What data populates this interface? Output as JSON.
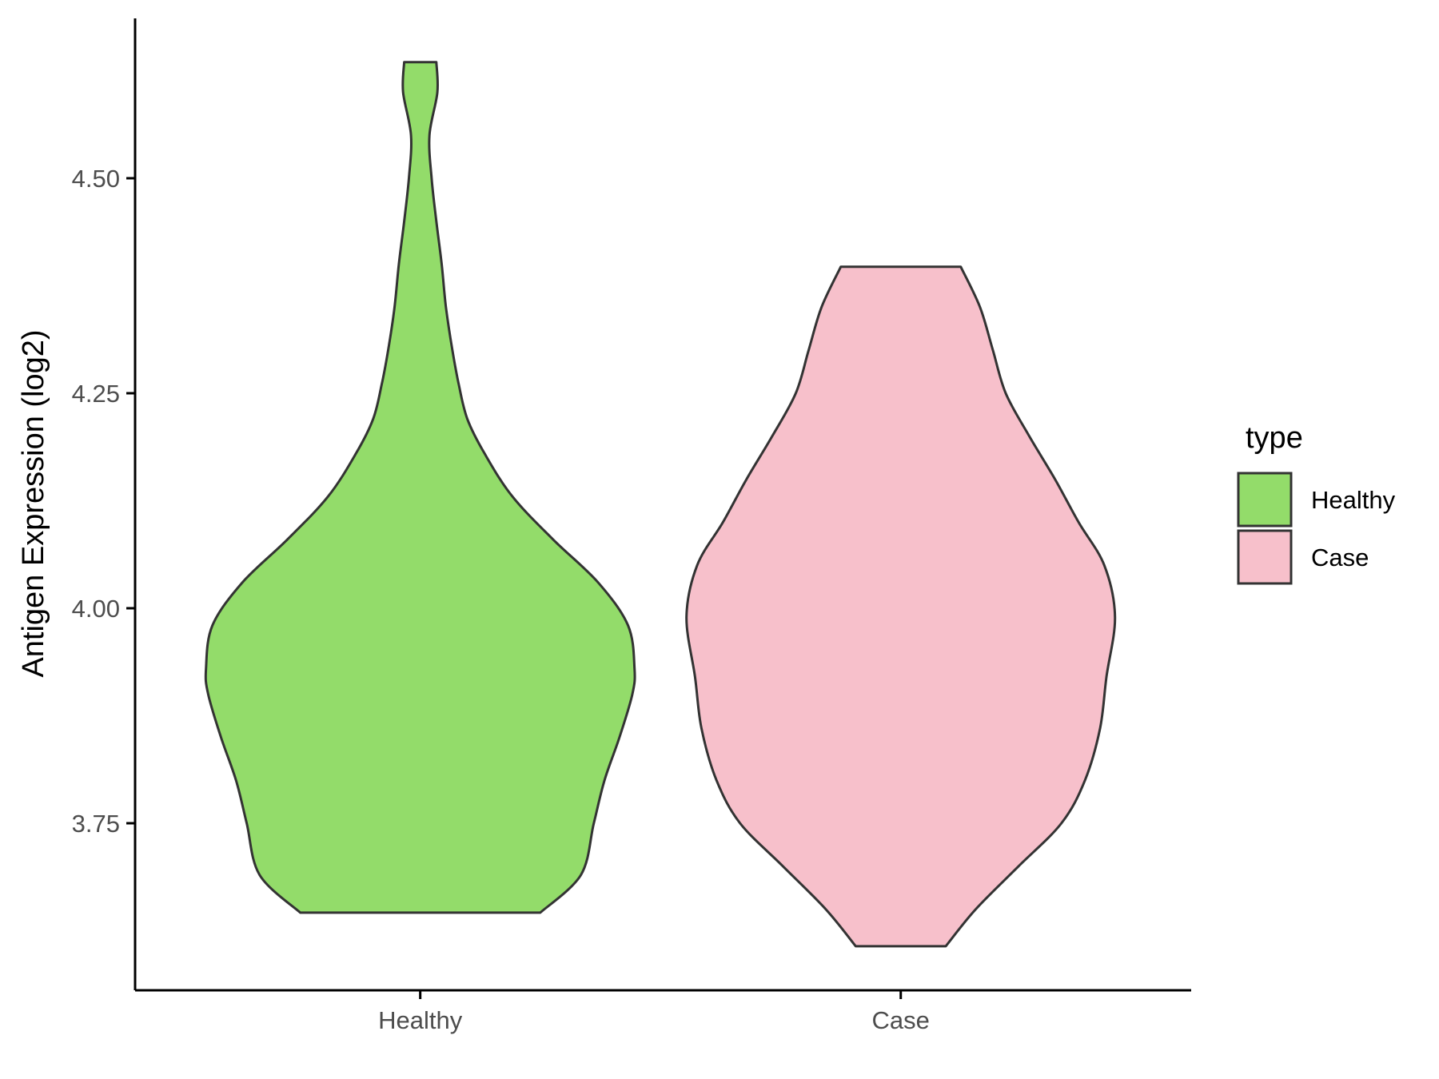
{
  "chart_data": {
    "type": "violin",
    "title": "",
    "xlabel": "",
    "ylabel": "Antigen Expression (log2)",
    "ylim": [
      3.55,
      4.68
    ],
    "yticks": [
      {
        "value": 3.75,
        "label": "3.75"
      },
      {
        "value": 4.0,
        "label": "4.00"
      },
      {
        "value": 4.25,
        "label": "4.25"
      },
      {
        "value": 4.5,
        "label": "4.50"
      }
    ],
    "categories": [
      "Healthy",
      "Case"
    ],
    "grid": false,
    "legend": {
      "title": "type",
      "position": "right",
      "entries": [
        "Healthy",
        "Case"
      ]
    },
    "series": [
      {
        "name": "Healthy",
        "color": "#93dc6a",
        "min": 3.646,
        "max": 4.635,
        "density": [
          {
            "y": 3.646,
            "w": 0.56
          },
          {
            "y": 3.69,
            "w": 0.75
          },
          {
            "y": 3.75,
            "w": 0.81
          },
          {
            "y": 3.8,
            "w": 0.86
          },
          {
            "y": 3.85,
            "w": 0.93
          },
          {
            "y": 3.9,
            "w": 0.99
          },
          {
            "y": 3.93,
            "w": 1.0
          },
          {
            "y": 3.98,
            "w": 0.97
          },
          {
            "y": 4.03,
            "w": 0.83
          },
          {
            "y": 4.08,
            "w": 0.62
          },
          {
            "y": 4.13,
            "w": 0.43
          },
          {
            "y": 4.18,
            "w": 0.3
          },
          {
            "y": 4.22,
            "w": 0.22
          },
          {
            "y": 4.26,
            "w": 0.18
          },
          {
            "y": 4.3,
            "w": 0.15
          },
          {
            "y": 4.35,
            "w": 0.12
          },
          {
            "y": 4.4,
            "w": 0.1
          },
          {
            "y": 4.45,
            "w": 0.075
          },
          {
            "y": 4.5,
            "w": 0.053
          },
          {
            "y": 4.55,
            "w": 0.043
          },
          {
            "y": 4.6,
            "w": 0.08
          },
          {
            "y": 4.635,
            "w": 0.075
          }
        ]
      },
      {
        "name": "Case",
        "color": "#f7c0cb",
        "min": 3.607,
        "max": 4.397,
        "density": [
          {
            "y": 3.607,
            "w": 0.21
          },
          {
            "y": 3.65,
            "w": 0.35
          },
          {
            "y": 3.7,
            "w": 0.55
          },
          {
            "y": 3.75,
            "w": 0.75
          },
          {
            "y": 3.8,
            "w": 0.86
          },
          {
            "y": 3.86,
            "w": 0.93
          },
          {
            "y": 3.92,
            "w": 0.96
          },
          {
            "y": 3.99,
            "w": 1.0
          },
          {
            "y": 4.05,
            "w": 0.95
          },
          {
            "y": 4.1,
            "w": 0.83
          },
          {
            "y": 4.15,
            "w": 0.72
          },
          {
            "y": 4.2,
            "w": 0.6
          },
          {
            "y": 4.25,
            "w": 0.49
          },
          {
            "y": 4.3,
            "w": 0.43
          },
          {
            "y": 4.35,
            "w": 0.37
          },
          {
            "y": 4.397,
            "w": 0.28
          }
        ]
      }
    ]
  }
}
